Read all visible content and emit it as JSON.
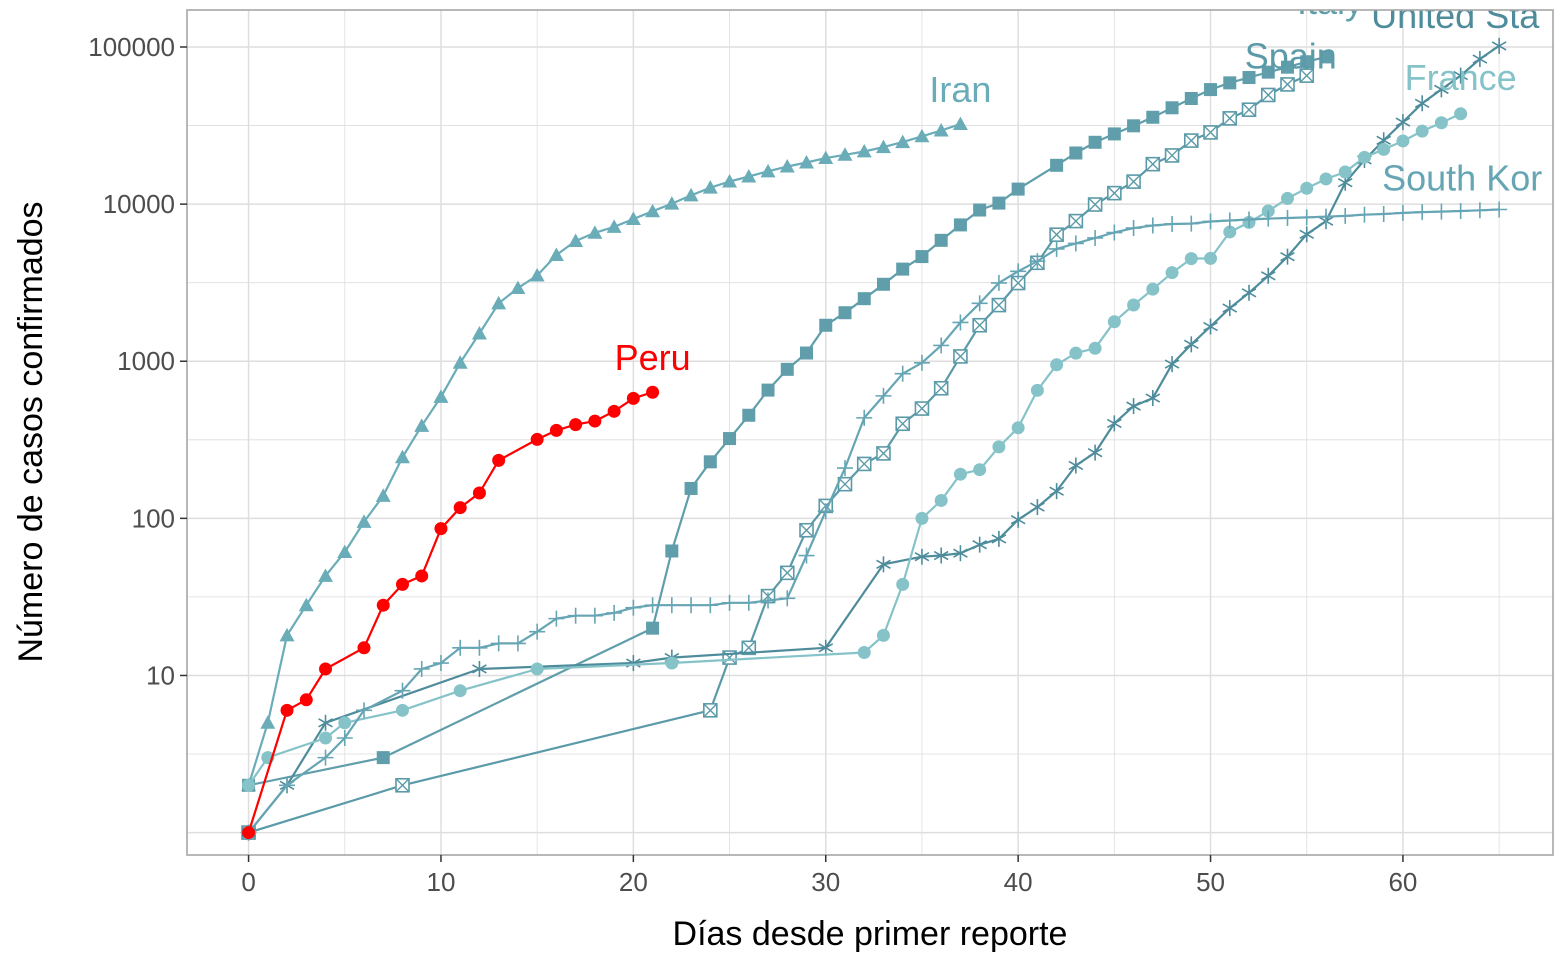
{
  "chart_data": {
    "type": "line",
    "title": "",
    "xlabel": "Días desde primer reporte",
    "ylabel": "Número de casos confirmados",
    "x_scale": "linear",
    "y_scale": "log10",
    "xlim": [
      -3.2,
      67.8
    ],
    "ylim": [
      0.72,
      172000
    ],
    "x_ticks": [
      0,
      10,
      20,
      30,
      40,
      50,
      60
    ],
    "x_tick_labels": [
      "0",
      "10",
      "20",
      "30",
      "40",
      "50",
      "60"
    ],
    "y_ticks": [
      10,
      100,
      1000,
      10000,
      100000
    ],
    "y_tick_labels": [
      "10",
      "100",
      "1000",
      "10000",
      "100000"
    ],
    "grid": true,
    "legend": "none (direct labels at line ends)",
    "colors": {
      "peru": "#ff0000",
      "iran": "#6aacb8",
      "italy": "#5f9eaa",
      "spain": "#5b9aa8",
      "united_states": "#4e8c9c",
      "france": "#86c3c9",
      "south_korea": "#66a5b4",
      "panel_border": "#a6a6a6",
      "grid": "#dedede"
    },
    "series": [
      {
        "name": "Iran",
        "marker": "triangle",
        "color": "#6aacb8",
        "x": [
          0,
          1,
          2,
          3,
          4,
          5,
          6,
          7,
          8,
          9,
          10,
          11,
          12,
          13,
          14,
          15,
          16,
          17,
          18,
          19,
          20,
          21,
          22,
          23,
          24,
          25,
          26,
          27,
          28,
          29,
          30,
          31,
          32,
          33,
          34,
          35,
          36,
          37
        ],
        "y": [
          2,
          5,
          18,
          28,
          43,
          61,
          95,
          139,
          245,
          388,
          593,
          978,
          1501,
          2336,
          2922,
          3513,
          4747,
          5823,
          6566,
          7161,
          8042,
          9000,
          10075,
          11364,
          12729,
          13938,
          14991,
          16169,
          17361,
          18407,
          19644,
          20610,
          21638,
          23049,
          24811,
          27017,
          29406,
          32332
        ]
      },
      {
        "name": "Italy",
        "marker": "square",
        "color": "#5f9eaa",
        "x": [
          0,
          7,
          21,
          22,
          23,
          24,
          25,
          26,
          27,
          28,
          29,
          30,
          31,
          32,
          33,
          34,
          35,
          36,
          37,
          38,
          39,
          40,
          42,
          43,
          44,
          45,
          46,
          47,
          48,
          49,
          50,
          51,
          52,
          53,
          54,
          55,
          56
        ],
        "y": [
          2,
          3,
          20,
          62,
          155,
          229,
          322,
          453,
          655,
          888,
          1128,
          1694,
          2036,
          2502,
          3089,
          3858,
          4636,
          5883,
          7375,
          9172,
          10149,
          12462,
          17660,
          21157,
          24747,
          27980,
          31506,
          35713,
          41035,
          47021,
          53578,
          59138,
          63927,
          69176,
          74386,
          80589,
          86498
        ]
      },
      {
        "name": "Spain",
        "marker": "square-cross",
        "color": "#5b9aa8",
        "x": [
          0,
          8,
          24,
          25,
          26,
          27,
          28,
          29,
          30,
          31,
          32,
          33,
          34,
          35,
          36,
          37,
          38,
          39,
          40,
          41,
          42,
          43,
          44,
          45,
          46,
          47,
          48,
          49,
          50,
          51,
          52,
          53,
          54,
          55
        ],
        "y": [
          1,
          2,
          6,
          13,
          15,
          32,
          45,
          84,
          120,
          165,
          222,
          259,
          400,
          500,
          673,
          1073,
          1695,
          2277,
          3146,
          4231,
          6391,
          7798,
          9942,
          11748,
          13910,
          17963,
          20410,
          25374,
          28603,
          35136,
          39885,
          49515,
          57786,
          65719
        ]
      },
      {
        "name": "United States",
        "marker": "asterisk",
        "color": "#4e8c9c",
        "x": [
          0,
          2,
          4,
          12,
          20,
          22,
          30,
          33,
          35,
          36,
          37,
          38,
          39,
          40,
          41,
          42,
          43,
          44,
          45,
          46,
          47,
          48,
          49,
          50,
          51,
          52,
          53,
          54,
          55,
          56,
          57,
          58,
          59,
          60,
          61,
          62,
          63,
          64,
          65
        ],
        "y": [
          1,
          2,
          5,
          11,
          12,
          13,
          15,
          51,
          57,
          58,
          60,
          68,
          74,
          98,
          118,
          149,
          217,
          262,
          402,
          518,
          583,
          959,
          1281,
          1663,
          2179,
          2726,
          3499,
          4632,
          6421,
          7786,
          13680,
          19101,
          25493,
          33276,
          43847,
          53740,
          65778,
          83836,
          101657
        ]
      },
      {
        "name": "France",
        "marker": "circle",
        "color": "#86c3c9",
        "x": [
          0,
          1,
          4,
          5,
          8,
          11,
          15,
          22,
          32,
          33,
          34,
          35,
          36,
          37,
          38,
          39,
          40,
          41,
          42,
          43,
          44,
          45,
          46,
          47,
          48,
          49,
          50,
          51,
          52,
          53,
          54,
          55,
          56,
          57,
          58,
          59,
          60,
          61,
          62,
          63
        ],
        "y": [
          2,
          3,
          4,
          5,
          6,
          8,
          11,
          12,
          14,
          18,
          38,
          100,
          130,
          191,
          204,
          285,
          377,
          653,
          949,
          1126,
          1209,
          1784,
          2281,
          2876,
          3661,
          4499,
          4513,
          6650,
          7652,
          9043,
          10871,
          12612,
          14459,
          16018,
          19856,
          22304,
          25233,
          29155,
          32964,
          37575
        ]
      },
      {
        "name": "South Korea",
        "marker": "plus",
        "color": "#66a5b4",
        "x": [
          0,
          2,
          4,
          5,
          6,
          8,
          9,
          10,
          11,
          12,
          13,
          14,
          15,
          16,
          17,
          18,
          19,
          20,
          21,
          22,
          23,
          24,
          25,
          26,
          27,
          28,
          29,
          30,
          31,
          32,
          33,
          34,
          35,
          36,
          37,
          38,
          39,
          40,
          41,
          42,
          43,
          44,
          45,
          46,
          47,
          48,
          49,
          50,
          51,
          52,
          53,
          54,
          55,
          56,
          57,
          58,
          59,
          60,
          61,
          62,
          63,
          64,
          65
        ],
        "y": [
          1,
          2,
          3,
          4,
          6,
          8,
          11,
          12,
          15,
          15,
          16,
          16,
          19,
          23,
          24,
          24,
          25,
          27,
          28,
          28,
          28,
          28,
          29,
          29,
          30,
          31,
          58,
          111,
          209,
          436,
          602,
          833,
          977,
          1261,
          1766,
          2337,
          3150,
          3736,
          4335,
          5186,
          5621,
          6088,
          6593,
          7041,
          7313,
          7478,
          7513,
          7755,
          7869,
          7979,
          8086,
          8162,
          8236,
          8320,
          8413,
          8565,
          8652,
          8799,
          8897,
          8961,
          9037,
          9137,
          9241
        ]
      },
      {
        "name": "Peru",
        "marker": "circle",
        "color": "#ff0000",
        "x": [
          0,
          2,
          3,
          4,
          6,
          7,
          8,
          9,
          10,
          11,
          12,
          13,
          15,
          16,
          17,
          18,
          19,
          20,
          21
        ],
        "y": [
          1,
          6,
          7,
          11,
          15,
          28,
          38,
          43,
          86,
          117,
          145,
          234,
          318,
          363,
          395,
          416,
          480,
          580,
          635
        ]
      }
    ],
    "labels": [
      {
        "text": "Peru",
        "series": "Peru"
      },
      {
        "text": "Iran",
        "series": "Iran"
      },
      {
        "text": "Italy",
        "series": "Italy"
      },
      {
        "text": "Spain",
        "series": "Spain"
      },
      {
        "text": "United Sta",
        "series": "United States"
      },
      {
        "text": "France",
        "series": "France"
      },
      {
        "text": "South Kor",
        "series": "South Korea"
      }
    ]
  }
}
